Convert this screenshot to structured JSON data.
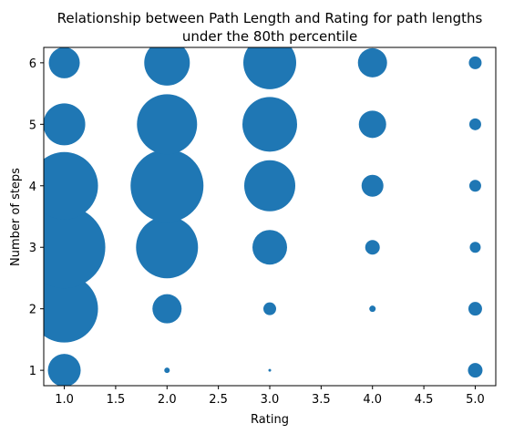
{
  "chart_data": {
    "type": "scatter",
    "title_lines": [
      "Relationship between Path Length and Rating for path lengths",
      "under the 80th percentile"
    ],
    "xlabel": "Rating",
    "ylabel": "Number of steps",
    "xlim": [
      0.8,
      5.2
    ],
    "ylim": [
      0.75,
      6.25
    ],
    "xticks": [
      1.0,
      1.5,
      2.0,
      2.5,
      3.0,
      3.5,
      4.0,
      4.5,
      5.0
    ],
    "xtick_labels": [
      "1.0",
      "1.5",
      "2.0",
      "2.5",
      "3.0",
      "3.5",
      "4.0",
      "4.5",
      "5.0"
    ],
    "yticks": [
      1,
      2,
      3,
      4,
      5,
      6
    ],
    "ytick_labels": [
      "1",
      "2",
      "3",
      "4",
      "5",
      "6"
    ],
    "grid": false,
    "color": "#1f77b4",
    "points": [
      {
        "x": 1.0,
        "y": 1,
        "size": 18
      },
      {
        "x": 1.0,
        "y": 2,
        "size": 37
      },
      {
        "x": 1.0,
        "y": 3,
        "size": 45
      },
      {
        "x": 1.0,
        "y": 4,
        "size": 37
      },
      {
        "x": 1.0,
        "y": 5,
        "size": 23
      },
      {
        "x": 1.0,
        "y": 6,
        "size": 17
      },
      {
        "x": 2.0,
        "y": 1,
        "size": 3
      },
      {
        "x": 2.0,
        "y": 2,
        "size": 16
      },
      {
        "x": 2.0,
        "y": 3,
        "size": 34
      },
      {
        "x": 2.0,
        "y": 4,
        "size": 40
      },
      {
        "x": 2.0,
        "y": 5,
        "size": 33
      },
      {
        "x": 2.0,
        "y": 6,
        "size": 25
      },
      {
        "x": 3.0,
        "y": 1,
        "size": 1.5
      },
      {
        "x": 3.0,
        "y": 2,
        "size": 7
      },
      {
        "x": 3.0,
        "y": 3,
        "size": 19
      },
      {
        "x": 3.0,
        "y": 4,
        "size": 28
      },
      {
        "x": 3.0,
        "y": 5,
        "size": 30
      },
      {
        "x": 3.0,
        "y": 6,
        "size": 29
      },
      {
        "x": 4.0,
        "y": 2,
        "size": 3.5
      },
      {
        "x": 4.0,
        "y": 3,
        "size": 8
      },
      {
        "x": 4.0,
        "y": 4,
        "size": 12
      },
      {
        "x": 4.0,
        "y": 5,
        "size": 15
      },
      {
        "x": 4.0,
        "y": 6,
        "size": 16
      },
      {
        "x": 5.0,
        "y": 1,
        "size": 8
      },
      {
        "x": 5.0,
        "y": 2,
        "size": 7.5
      },
      {
        "x": 5.0,
        "y": 3,
        "size": 6
      },
      {
        "x": 5.0,
        "y": 4,
        "size": 6.5
      },
      {
        "x": 5.0,
        "y": 5,
        "size": 6.5
      },
      {
        "x": 5.0,
        "y": 6,
        "size": 7
      }
    ]
  }
}
